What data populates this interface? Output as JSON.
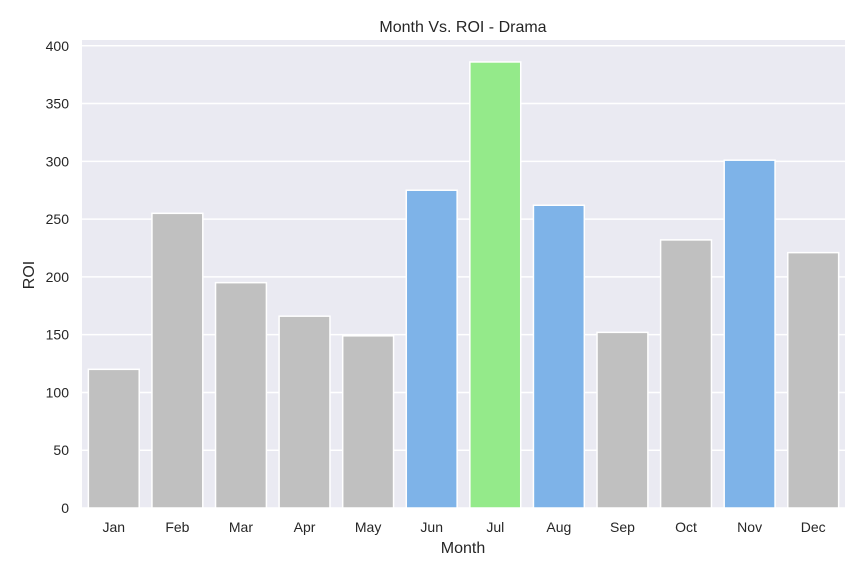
{
  "chart_data": {
    "type": "bar",
    "title": "Month Vs. ROI - Drama",
    "xlabel": "Month",
    "ylabel": "ROI",
    "categories": [
      "Jan",
      "Feb",
      "Mar",
      "Apr",
      "May",
      "Jun",
      "Jul",
      "Aug",
      "Sep",
      "Oct",
      "Nov",
      "Dec"
    ],
    "values": [
      120,
      255,
      195,
      166,
      149,
      275,
      386,
      262,
      152,
      232,
      301,
      221
    ],
    "colors": [
      "#c0c0c0",
      "#c0c0c0",
      "#c0c0c0",
      "#c0c0c0",
      "#c0c0c0",
      "#7eb3e8",
      "#94ea8a",
      "#7eb3e8",
      "#c0c0c0",
      "#c0c0c0",
      "#7eb3e8",
      "#c0c0c0"
    ],
    "ylim": [
      0,
      405
    ],
    "yticks": [
      0,
      50,
      100,
      150,
      200,
      250,
      300,
      350,
      400
    ],
    "grid": true,
    "plot_background": "#eaeaf2",
    "grid_color": "#ffffff"
  }
}
